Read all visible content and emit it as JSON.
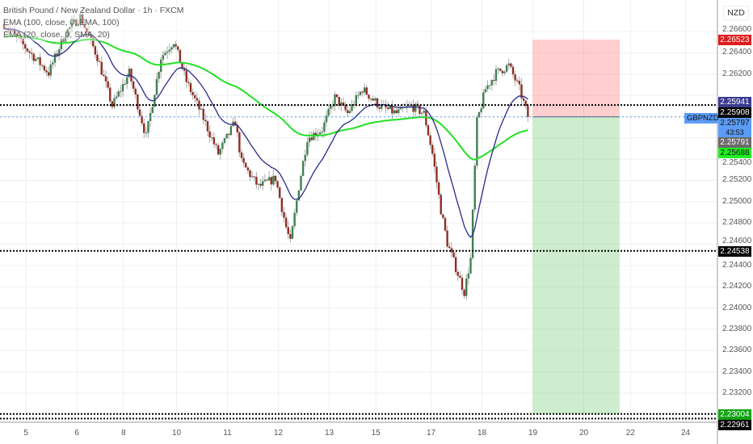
{
  "legend": {
    "title": "British Pound / New Zealand Dollar · 1h · FXCM",
    "ind1": "EMA (100, close, 0, EMA, 100)",
    "ind2": "EMA (20, close, 0, SMA, 20)"
  },
  "currency": "NZD",
  "symbol": "GBPNZD",
  "countdown": "43:53",
  "price_labels": [
    {
      "value": "2.26523",
      "price": 2.26523,
      "bg": "#e01b1b",
      "fg": "#ffffff"
    },
    {
      "value": "2.25941",
      "price": 2.25941,
      "bg": "#3b3b8f",
      "fg": "#ffffff"
    },
    {
      "value": "2.25908",
      "price": 2.25908,
      "bg": "#000000",
      "fg": "#ffffff"
    },
    {
      "value": "2.25797",
      "price": 2.25797,
      "bg": "#5b9cf6",
      "fg": "#111111"
    },
    {
      "value": "2.25791",
      "price": 2.25791,
      "bg": "#6b6b6b",
      "fg": "#ffffff"
    },
    {
      "value": "2.25688",
      "price": 2.25688,
      "bg": "#22ee22",
      "fg": "#111111"
    },
    {
      "value": "2.24538",
      "price": 2.24538,
      "bg": "#000000",
      "fg": "#ffffff"
    },
    {
      "value": "2.23004",
      "price": 2.23004,
      "bg": "#13a313",
      "fg": "#ffffff"
    },
    {
      "value": "2.22961",
      "price": 2.22961,
      "bg": "#000000",
      "fg": "#ffffff"
    }
  ],
  "chart_data": {
    "type": "candlestick",
    "title": "British Pound / New Zealand Dollar · 1h · FXCM",
    "ylim": [
      2.2285,
      2.2675
    ],
    "y_ticks": [
      "2.26600",
      "2.26400",
      "2.26200",
      "2.25400",
      "2.25200",
      "2.25000",
      "2.24800",
      "2.24600",
      "2.24400",
      "2.24200",
      "2.24000",
      "2.23800",
      "2.23600",
      "2.23400",
      "2.23200"
    ],
    "x_ticks": [
      {
        "label": "5",
        "bar": 5
      },
      {
        "label": "6",
        "bar": 29
      },
      {
        "label": "8",
        "bar": 51
      },
      {
        "label": "10",
        "bar": 76
      },
      {
        "label": "11",
        "bar": 100
      },
      {
        "label": "12",
        "bar": 124
      },
      {
        "label": "13",
        "bar": 148
      },
      {
        "label": "15",
        "bar": 170
      },
      {
        "label": "17",
        "bar": 196
      },
      {
        "label": "18",
        "bar": 220
      },
      {
        "label": "19",
        "bar": 244
      },
      {
        "label": "20",
        "bar": 268
      },
      {
        "label": "22",
        "bar": 290
      },
      {
        "label": "24",
        "bar": 316
      }
    ],
    "price_path": [
      [
        0,
        2.2667
      ],
      [
        21,
        2.2621
      ],
      [
        29,
        2.2659
      ],
      [
        36,
        2.2674
      ],
      [
        44,
        2.2636
      ],
      [
        51,
        2.259
      ],
      [
        59,
        2.2621
      ],
      [
        67,
        2.2561
      ],
      [
        74,
        2.2636
      ],
      [
        80,
        2.2651
      ],
      [
        86,
        2.2613
      ],
      [
        93,
        2.2583
      ],
      [
        101,
        2.2545
      ],
      [
        109,
        2.2575
      ],
      [
        112,
        2.2537
      ],
      [
        120,
        2.2514
      ],
      [
        128,
        2.2522
      ],
      [
        133,
        2.2476
      ],
      [
        135,
        2.2461
      ],
      [
        139,
        2.2514
      ],
      [
        143,
        2.256
      ],
      [
        150,
        2.2568
      ],
      [
        156,
        2.2598
      ],
      [
        162,
        2.2583
      ],
      [
        169,
        2.2606
      ],
      [
        177,
        2.259
      ],
      [
        185,
        2.2583
      ],
      [
        192,
        2.259
      ],
      [
        198,
        2.2583
      ],
      [
        202,
        2.2545
      ],
      [
        206,
        2.2492
      ],
      [
        209,
        2.2461
      ],
      [
        213,
        2.2438
      ],
      [
        217,
        2.2415
      ],
      [
        220,
        2.2446
      ],
      [
        223,
        2.2575
      ],
      [
        227,
        2.2606
      ],
      [
        232,
        2.2621
      ],
      [
        238,
        2.2628
      ],
      [
        243,
        2.2606
      ],
      [
        247,
        2.258
      ]
    ],
    "indicators": [
      {
        "name": "EMA 100",
        "period": 100,
        "color": "#22e022"
      },
      {
        "name": "EMA 20",
        "period": 20,
        "color": "#2a2a8a"
      }
    ],
    "horizontal_lines": [
      {
        "price": 2.25908,
        "style": "dotted",
        "color": "#000"
      },
      {
        "price": 2.24538,
        "style": "dotted",
        "color": "#000"
      },
      {
        "price": 2.23004,
        "style": "dotted",
        "color": "#000"
      },
      {
        "price": 2.22961,
        "style": "dotted",
        "color": "#000"
      },
      {
        "price": 2.25797,
        "style": "dotted",
        "color": "#5b9cf6"
      }
    ],
    "position": {
      "type": "short",
      "entry": 2.25797,
      "stop": 2.26523,
      "target": 2.23004,
      "start_bar": 247,
      "end_bar": 288
    }
  }
}
